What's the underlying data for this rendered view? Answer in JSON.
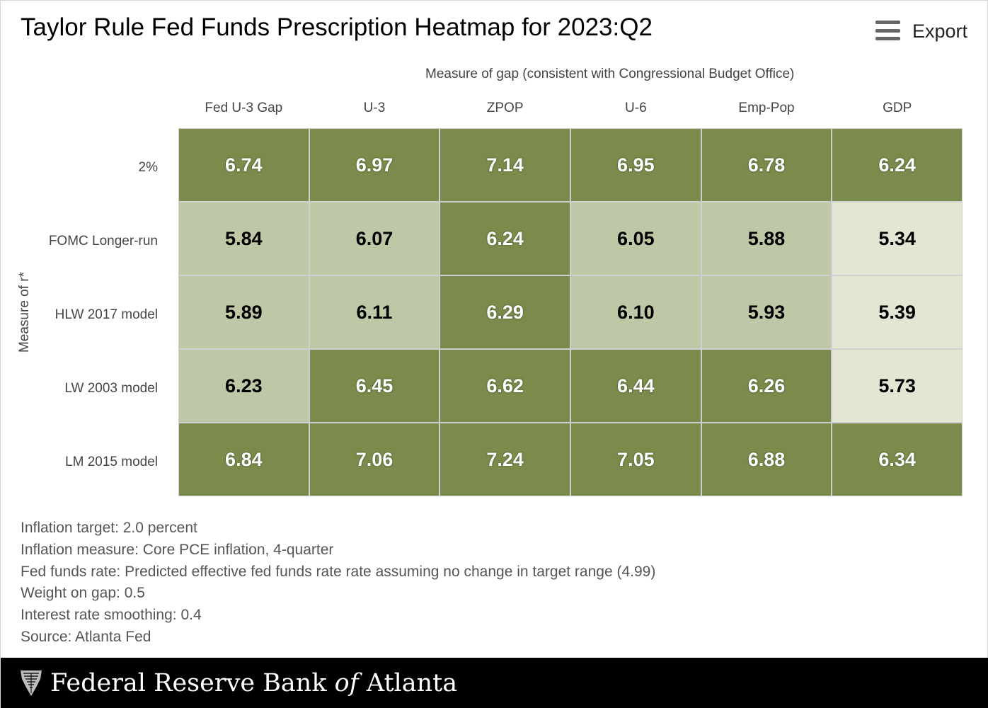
{
  "title": "Taylor Rule Fed Funds Prescription Heatmap for 2023:Q2",
  "export": {
    "label": "Export",
    "icon": "hamburger-menu-icon"
  },
  "colors": {
    "dark": "#7a8b4b",
    "medium": "#bfc8a6",
    "light": "#e2e6d3",
    "grid": "#cfcfcf",
    "footer_bg": "#000000"
  },
  "chart_data": {
    "type": "heatmap",
    "title": "Taylor Rule Fed Funds Prescription Heatmap for 2023:Q2",
    "xlabel": "Measure of gap (consistent with Congressional Budget Office)",
    "ylabel": "Measure of r*",
    "columns": [
      "Fed U-3 Gap",
      "U-3",
      "ZPOP",
      "U-6",
      "Emp-Pop",
      "GDP"
    ],
    "rows": [
      "2%",
      "FOMC Longer-run",
      "HLW 2017 model",
      "LW 2003 model",
      "LM 2015 model"
    ],
    "values": [
      [
        "6.74",
        "6.97",
        "7.14",
        "6.95",
        "6.78",
        "6.24"
      ],
      [
        "5.84",
        "6.07",
        "6.24",
        "6.05",
        "5.88",
        "5.34"
      ],
      [
        "5.89",
        "6.11",
        "6.29",
        "6.10",
        "5.93",
        "5.39"
      ],
      [
        "6.23",
        "6.45",
        "6.62",
        "6.44",
        "6.26",
        "5.73"
      ],
      [
        "6.84",
        "7.06",
        "7.24",
        "7.05",
        "6.88",
        "6.34"
      ]
    ],
    "shading": [
      [
        "dark",
        "dark",
        "dark",
        "dark",
        "dark",
        "dark"
      ],
      [
        "medium",
        "medium",
        "dark",
        "medium",
        "medium",
        "light"
      ],
      [
        "medium",
        "medium",
        "dark",
        "medium",
        "medium",
        "light"
      ],
      [
        "medium",
        "dark",
        "dark",
        "dark",
        "dark",
        "light"
      ],
      [
        "dark",
        "dark",
        "dark",
        "dark",
        "dark",
        "dark"
      ]
    ]
  },
  "notes": [
    "Inflation target: 2.0 percent",
    "Inflation measure: Core PCE inflation, 4-quarter",
    "Fed funds rate: Predicted effective fed funds rate rate assuming no change in target range (4.99)",
    "Weight on gap: 0.5",
    "Interest rate smoothing: 0.4",
    "Source: Atlanta Fed"
  ],
  "footer": {
    "brand_prefix": "Federal Reserve Bank ",
    "brand_of": "of",
    "brand_suffix": " Atlanta",
    "logo_icon": "eagle-seal-icon"
  }
}
